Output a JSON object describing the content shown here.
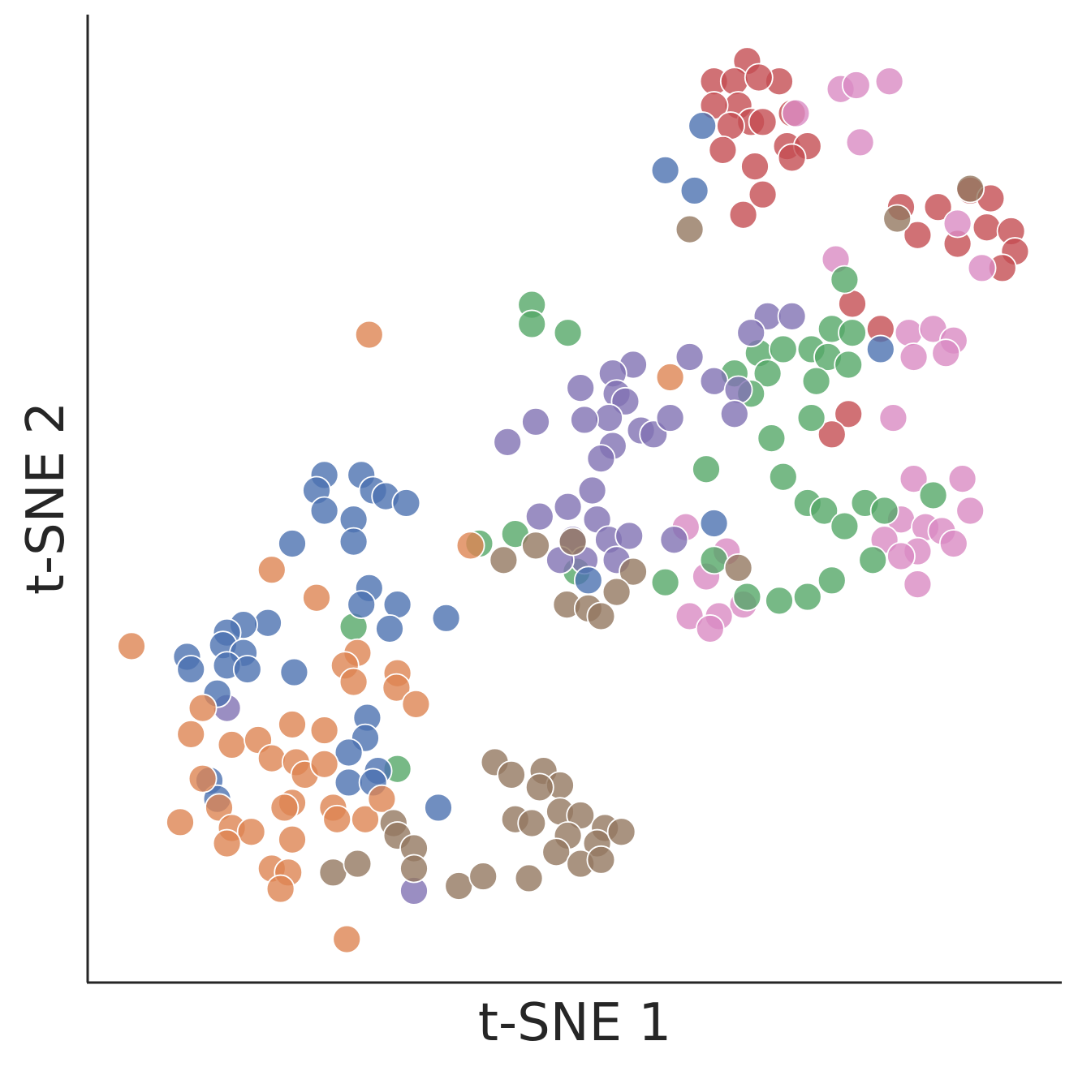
{
  "chart_data": {
    "type": "scatter",
    "xlabel": "t-SNE 1",
    "ylabel": "t-SNE 2",
    "xlim": [
      0,
      100
    ],
    "ylim": [
      0,
      100
    ],
    "series": [
      {
        "color": "#c44e52",
        "x": [
          67.7,
          64.3,
          66.4,
          71.0,
          68.9,
          66.8,
          64.3,
          68.1,
          66.0,
          69.3,
          72.3,
          65.2,
          68.5,
          71.8,
          73.9,
          72.3,
          69.3,
          67.3,
          83.5,
          87.3,
          90.6,
          92.7,
          85.2,
          89.3,
          92.3,
          94.8,
          95.2,
          93.9,
          78.5,
          81.4,
          78.1,
          76.4
        ],
        "y": [
          95.2,
          93.1,
          93.1,
          93.1,
          93.5,
          90.6,
          90.6,
          88.9,
          88.5,
          88.9,
          89.8,
          86.0,
          84.3,
          86.4,
          86.4,
          85.2,
          81.4,
          79.3,
          80.1,
          80.1,
          81.8,
          81.0,
          77.2,
          76.3,
          78.0,
          77.6,
          75.5,
          73.8,
          70.1,
          67.5,
          58.7,
          56.6
        ]
      },
      {
        "color": "#da8bc3",
        "x": [
          77.3,
          78.9,
          82.3,
          72.7,
          79.3,
          76.8,
          89.3,
          91.8,
          84.3,
          86.8,
          88.9,
          84.8,
          88.1,
          82.7,
          84.8,
          89.8,
          90.6,
          83.5,
          86.0,
          87.7,
          81.8,
          85.2,
          88.9,
          83.5,
          85.2,
          61.4,
          65.6,
          63.5,
          67.3,
          64.8,
          61.8,
          63.9
        ],
        "y": [
          92.3,
          92.7,
          93.1,
          89.8,
          86.8,
          74.7,
          78.4,
          73.8,
          67.1,
          67.5,
          66.3,
          64.6,
          65.0,
          58.3,
          52.0,
          52.0,
          48.7,
          47.8,
          47.0,
          46.6,
          45.7,
          44.5,
          45.3,
          44.0,
          41.1,
          47.0,
          44.5,
          41.9,
          39.0,
          37.8,
          37.8,
          36.5
        ]
      },
      {
        "color": "#55a868",
        "x": [
          45.6,
          45.6,
          49.3,
          77.7,
          76.4,
          78.5,
          68.9,
          71.4,
          74.3,
          76.0,
          69.8,
          66.4,
          78.1,
          74.8,
          68.1,
          74.3,
          70.2,
          63.5,
          71.4,
          73.9,
          75.6,
          77.7,
          79.8,
          81.8,
          86.8,
          80.6,
          76.4,
          73.9,
          71.0,
          67.7,
          64.3,
          59.3,
          40.2,
          43.9,
          27.3,
          31.8,
          50.2
        ],
        "y": [
          70.0,
          68.0,
          67.1,
          72.6,
          67.5,
          67.1,
          65.0,
          65.4,
          65.4,
          64.6,
          62.9,
          62.9,
          63.8,
          62.1,
          60.8,
          58.3,
          56.2,
          53.0,
          52.2,
          49.5,
          48.7,
          47.1,
          49.5,
          48.7,
          50.3,
          43.6,
          41.5,
          39.8,
          39.4,
          39.8,
          43.6,
          41.3,
          45.3,
          46.3,
          36.7,
          22.0,
          42.4
        ]
      },
      {
        "color": "#8172b3",
        "x": [
          69.8,
          72.3,
          68.1,
          61.8,
          64.3,
          66.8,
          66.4,
          56.0,
          53.9,
          50.6,
          54.3,
          55.2,
          53.5,
          51.0,
          56.8,
          58.1,
          59.8,
          46.0,
          43.1,
          53.9,
          52.7,
          51.8,
          49.3,
          46.4,
          52.3,
          49.8,
          53.5,
          55.6,
          51.0,
          54.3,
          48.5,
          60.2,
          14.3,
          33.5
        ],
        "y": [
          68.8,
          68.8,
          67.1,
          64.6,
          62.1,
          61.2,
          58.7,
          63.8,
          62.9,
          61.4,
          60.8,
          60.0,
          58.3,
          58.1,
          57.0,
          56.6,
          58.3,
          57.9,
          55.8,
          55.4,
          54.1,
          50.8,
          49.1,
          48.1,
          47.8,
          45.7,
          45.7,
          46.1,
          43.6,
          43.6,
          43.6,
          45.7,
          28.3,
          9.4
        ]
      },
      {
        "color": "#4c72b0",
        "x": [
          63.1,
          59.3,
          62.3,
          81.4,
          64.3,
          51.4,
          24.3,
          28.1,
          23.5,
          29.3,
          30.6,
          32.7,
          24.3,
          27.3,
          27.3,
          21.0,
          28.9,
          28.1,
          31.8,
          31.0,
          18.5,
          16.0,
          14.3,
          13.9,
          16.0,
          10.2,
          10.6,
          14.3,
          16.4,
          21.2,
          13.3,
          36.8,
          28.7,
          28.5,
          26.8,
          29.8,
          26.8,
          29.3,
          36.0,
          12.5,
          13.3
        ],
        "y": [
          88.5,
          83.9,
          81.8,
          65.4,
          47.4,
          41.5,
          52.4,
          52.4,
          50.8,
          50.8,
          50.2,
          49.5,
          48.7,
          47.8,
          45.5,
          45.3,
          40.7,
          39.0,
          39.0,
          36.5,
          37.1,
          36.9,
          36.1,
          34.8,
          34.0,
          33.6,
          32.3,
          32.7,
          32.3,
          32.0,
          29.8,
          37.6,
          27.3,
          25.2,
          23.7,
          21.8,
          20.6,
          20.6,
          18.0,
          20.8,
          18.9
        ]
      },
      {
        "color": "#dd8452",
        "x": [
          28.9,
          59.8,
          39.3,
          18.9,
          23.5,
          4.5,
          27.7,
          26.4,
          27.3,
          31.8,
          31.7,
          33.7,
          11.8,
          10.6,
          14.8,
          17.5,
          18.9,
          21.0,
          24.3,
          21.4,
          22.3,
          24.3,
          11.8,
          13.5,
          9.5,
          14.8,
          16.8,
          14.3,
          21.0,
          20.2,
          25.2,
          25.6,
          28.5,
          30.2,
          21.0,
          18.9,
          20.6,
          19.8,
          26.6
        ],
        "y": [
          66.9,
          62.5,
          45.1,
          42.6,
          39.7,
          34.7,
          34.0,
          32.7,
          31.0,
          31.9,
          30.4,
          28.7,
          28.3,
          25.6,
          24.5,
          25.0,
          23.1,
          26.6,
          26.0,
          22.7,
          21.4,
          22.5,
          21.0,
          18.0,
          16.5,
          15.9,
          15.5,
          14.3,
          18.5,
          18.0,
          18.0,
          16.8,
          16.8,
          18.9,
          14.7,
          11.7,
          11.3,
          9.6,
          4.4
        ]
      },
      {
        "color": "#937860",
        "x": [
          61.8,
          83.1,
          90.6,
          42.7,
          46.0,
          49.8,
          56.0,
          54.3,
          49.2,
          51.4,
          52.7,
          66.8,
          41.8,
          43.5,
          46.8,
          48.5,
          46.4,
          43.9,
          45.6,
          48.5,
          50.6,
          53.1,
          49.3,
          52.3,
          48.1,
          50.6,
          52.7,
          31.4,
          31.8,
          33.5,
          25.2,
          27.7,
          33.5,
          38.1,
          40.6,
          45.3,
          54.8
        ],
        "y": [
          77.8,
          78.9,
          82.0,
          43.6,
          45.1,
          45.5,
          42.4,
          40.3,
          39.0,
          38.6,
          37.8,
          42.8,
          22.7,
          21.4,
          21.8,
          20.3,
          20.1,
          16.8,
          16.4,
          17.6,
          17.2,
          15.9,
          15.1,
          14.3,
          13.4,
          12.2,
          12.6,
          16.4,
          15.1,
          13.8,
          11.3,
          12.2,
          11.7,
          9.9,
          10.9,
          10.7,
          15.5
        ]
      }
    ]
  }
}
